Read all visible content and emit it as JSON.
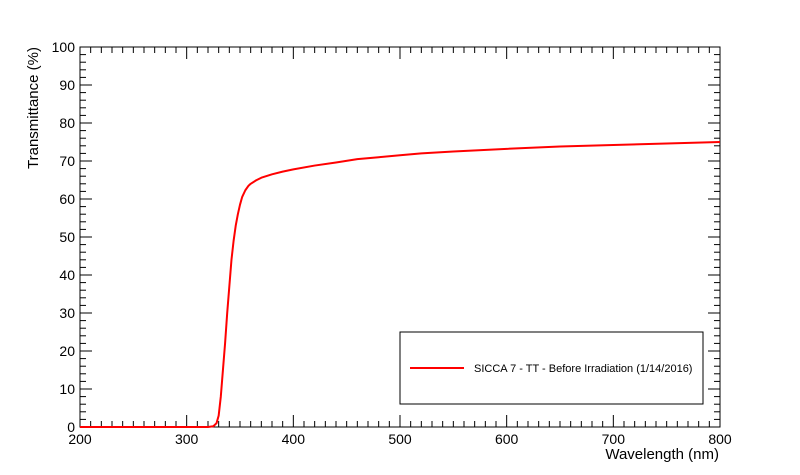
{
  "chart_data": {
    "type": "line",
    "title": "",
    "xlabel": "Wavelength (nm)",
    "ylabel": "Transmittance (%)",
    "xlim": [
      200,
      800
    ],
    "ylim": [
      0,
      100
    ],
    "x_ticks": [
      "200",
      "300",
      "400",
      "500",
      "600",
      "700",
      "800"
    ],
    "y_ticks": [
      "0",
      "10",
      "20",
      "30",
      "40",
      "50",
      "60",
      "70",
      "80",
      "90",
      "100"
    ],
    "grid": false,
    "legend_position": "bottom-right",
    "series": [
      {
        "name": "SICCA 7 - TT - Before Irradiation (1/14/2016)",
        "color": "#ff0000",
        "x": [
          200,
          250,
          300,
          320,
          325,
          328,
          330,
          332,
          334,
          336,
          338,
          340,
          342,
          344,
          346,
          348,
          350,
          352,
          355,
          358,
          360,
          365,
          370,
          380,
          390,
          400,
          420,
          440,
          460,
          480,
          500,
          520,
          550,
          600,
          650,
          700,
          750,
          800
        ],
        "values": [
          0,
          0,
          0,
          0,
          0.2,
          1,
          3,
          8,
          15,
          22,
          30,
          37,
          44,
          49,
          53,
          56,
          58.5,
          60.5,
          62.3,
          63.5,
          64,
          64.9,
          65.6,
          66.5,
          67.2,
          67.8,
          68.8,
          69.6,
          70.5,
          71.0,
          71.5,
          72.0,
          72.5,
          73.2,
          73.8,
          74.2,
          74.6,
          75.0
        ]
      }
    ]
  }
}
